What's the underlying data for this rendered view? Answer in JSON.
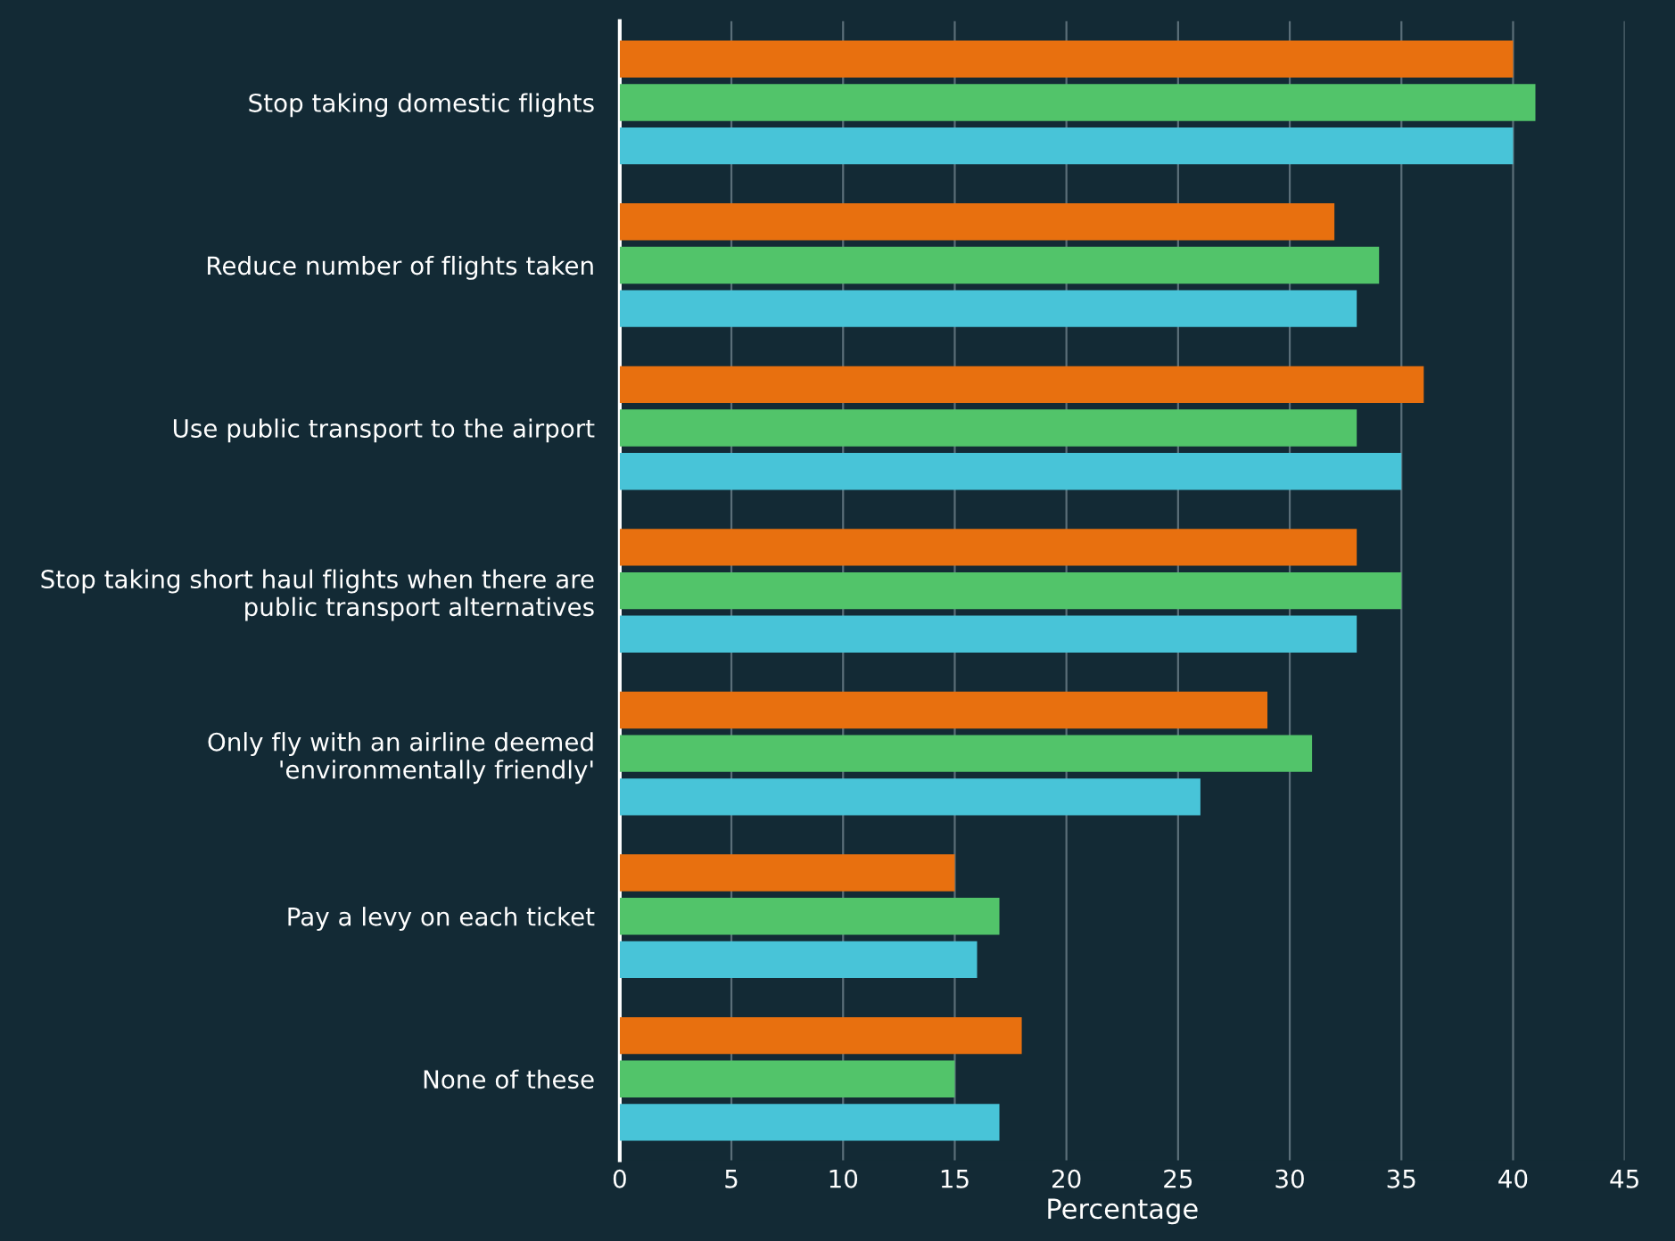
{
  "chart_data": {
    "type": "bar",
    "orientation": "horizontal",
    "xlabel": "Percentage",
    "categories": [
      "Stop taking domestic flights",
      "Reduce number of flights taken",
      "Use public transport to the airport",
      "Stop taking short haul flights when there are\npublic transport alternatives",
      "Only fly with an airline deemed\n'environmentally friendly'",
      "Pay a levy on each ticket",
      "None of these"
    ],
    "series": [
      {
        "color": "#e8700f",
        "values": [
          40,
          32,
          36,
          33,
          29,
          15,
          18
        ]
      },
      {
        "color": "#52c46a",
        "values": [
          41,
          34,
          33,
          35,
          31,
          17,
          15
        ]
      },
      {
        "color": "#48c4d8",
        "values": [
          40,
          33,
          35,
          33,
          26,
          16,
          17
        ]
      }
    ],
    "xlim": [
      0,
      45
    ],
    "xticks": [
      0,
      5,
      10,
      15,
      20,
      25,
      30,
      35,
      40,
      45
    ],
    "grid": "x"
  }
}
